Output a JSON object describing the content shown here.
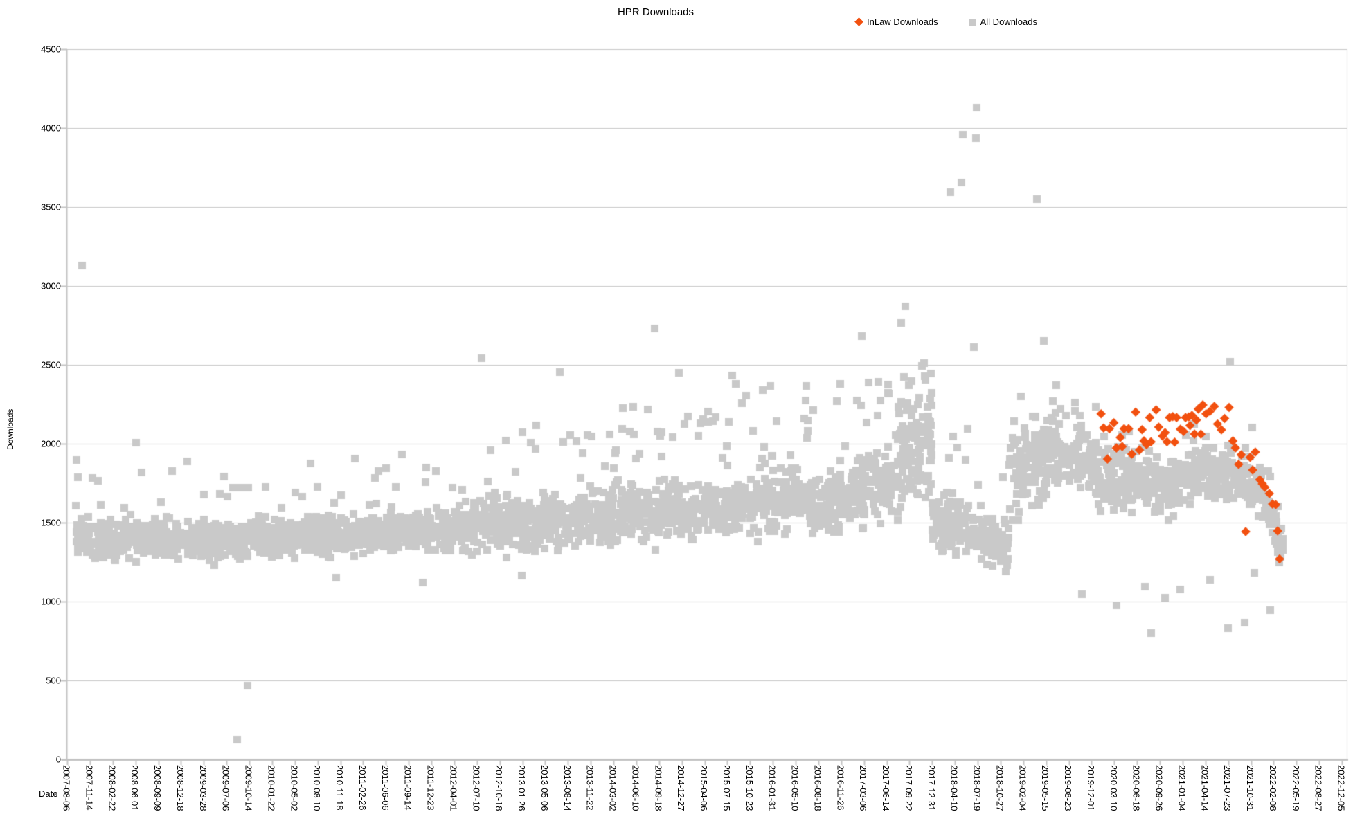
{
  "chart": {
    "title": "HPR Downloads",
    "xlabel": "Date",
    "ylabel": "Downloads"
  },
  "chart_data": {
    "type": "scatter",
    "title": "HPR Downloads",
    "xlabel": "Date",
    "ylabel": "Downloads",
    "ylim": [
      0,
      4500
    ],
    "y_ticks": [
      0,
      500,
      1000,
      1500,
      2000,
      2500,
      3000,
      3500,
      4000,
      4500
    ],
    "x_tick_interval_days": 100,
    "x_tick_labels": [
      "2007-08-06",
      "2007-11-14",
      "2008-02-22",
      "2008-06-01",
      "2008-09-09",
      "2008-12-18",
      "2009-03-28",
      "2009-07-06",
      "2009-10-14",
      "2010-01-22",
      "2010-05-02",
      "2010-08-10",
      "2010-11-18",
      "2011-02-26",
      "2011-06-06",
      "2011-09-14",
      "2011-12-23",
      "2012-04-01",
      "2012-07-10",
      "2012-10-18",
      "2013-01-26",
      "2013-05-06",
      "2013-08-14",
      "2013-11-22",
      "2014-03-02",
      "2014-06-10",
      "2014-09-18",
      "2014-12-27",
      "2015-04-06",
      "2015-07-15",
      "2015-10-23",
      "2016-01-31",
      "2016-05-10",
      "2016-08-18",
      "2016-11-26",
      "2017-03-06",
      "2017-06-14",
      "2017-09-22",
      "2017-12-31",
      "2018-04-10",
      "2018-07-19",
      "2018-10-27",
      "2019-02-04",
      "2019-05-15",
      "2019-08-23",
      "2019-12-01",
      "2020-03-10",
      "2020-06-18",
      "2020-09-26",
      "2021-01-04",
      "2021-04-14",
      "2021-07-23",
      "2021-10-31",
      "2022-02-08",
      "2022-05-19",
      "2022-08-27",
      "2022-12-05"
    ],
    "grid": "horizontal",
    "legend_position": "top-right",
    "colors": {
      "inlaw": "#f2500f",
      "all": "#c9c9c9",
      "grid": "#c8c8c8",
      "axis": "#c4c4c4",
      "text": "#000000"
    },
    "x_note": "x values are fractions of the horizontal axis; 0 = 2007-08-06 tick, 1 = 2022-12-05 tick (100-day tick spacing). Data ends ~0.95 (spring 2022).",
    "series": [
      {
        "name": "InLaw Downloads",
        "marker": "diamond",
        "color": "#f2500f",
        "points": [
          [
            0.808,
            2190
          ],
          [
            0.81,
            2100
          ],
          [
            0.813,
            1903
          ],
          [
            0.8145,
            2095
          ],
          [
            0.818,
            2133
          ],
          [
            0.82,
            1973
          ],
          [
            0.823,
            2040
          ],
          [
            0.8245,
            1982
          ],
          [
            0.826,
            2095
          ],
          [
            0.8295,
            2095
          ],
          [
            0.832,
            1934
          ],
          [
            0.835,
            2201
          ],
          [
            0.838,
            1960
          ],
          [
            0.84,
            2089
          ],
          [
            0.8415,
            2018
          ],
          [
            0.8435,
            1995
          ],
          [
            0.846,
            2166
          ],
          [
            0.847,
            2012
          ],
          [
            0.851,
            2215
          ],
          [
            0.853,
            2105
          ],
          [
            0.856,
            2048
          ],
          [
            0.858,
            2070
          ],
          [
            0.8595,
            2012
          ],
          [
            0.8615,
            2166
          ],
          [
            0.864,
            2172
          ],
          [
            0.8655,
            2010
          ],
          [
            0.867,
            2166
          ],
          [
            0.87,
            2092
          ],
          [
            0.8725,
            2078
          ],
          [
            0.874,
            2166
          ],
          [
            0.8765,
            2170
          ],
          [
            0.8775,
            2115
          ],
          [
            0.879,
            2180
          ],
          [
            0.881,
            2061
          ],
          [
            0.8825,
            2150
          ],
          [
            0.884,
            2220
          ],
          [
            0.886,
            2060
          ],
          [
            0.8875,
            2246
          ],
          [
            0.89,
            2190
          ],
          [
            0.893,
            2205
          ],
          [
            0.8965,
            2237
          ],
          [
            0.899,
            2125
          ],
          [
            0.902,
            2088
          ],
          [
            0.9045,
            2160
          ],
          [
            0.908,
            2230
          ],
          [
            0.911,
            2018
          ],
          [
            0.913,
            1974
          ],
          [
            0.9155,
            1869
          ],
          [
            0.9175,
            1930
          ],
          [
            0.921,
            1443
          ],
          [
            0.9245,
            1913
          ],
          [
            0.9265,
            1833
          ],
          [
            0.9285,
            1947
          ],
          [
            0.932,
            1772
          ],
          [
            0.934,
            1746
          ],
          [
            0.936,
            1724
          ],
          [
            0.9395,
            1684
          ],
          [
            0.942,
            1618
          ],
          [
            0.9445,
            1614
          ],
          [
            0.946,
            1447
          ],
          [
            0.9475,
            1270
          ]
        ]
      },
      {
        "name": "All Downloads",
        "marker": "square",
        "color": "#c9c9c9",
        "points_note": "~3400 episode points approximated by density segments [x0,x1,center0,center1,halfwidth,count,upper_tail_prob,upper_tail_extra] plus explicit outliers",
        "density_segments": [
          [
            0.007,
            0.1,
            1400,
            1390,
            175,
            330,
            0.05,
            430
          ],
          [
            0.1,
            0.17,
            1385,
            1390,
            165,
            250,
            0.04,
            390
          ],
          [
            0.17,
            0.3,
            1410,
            1460,
            175,
            470,
            0.05,
            430
          ],
          [
            0.3,
            0.42,
            1470,
            1530,
            235,
            430,
            0.07,
            520
          ],
          [
            0.42,
            0.52,
            1540,
            1580,
            250,
            360,
            0.09,
            650
          ],
          [
            0.52,
            0.6,
            1590,
            1650,
            270,
            290,
            0.1,
            700
          ],
          [
            0.6,
            0.65,
            1670,
            1760,
            330,
            185,
            0.1,
            570
          ],
          [
            0.65,
            0.676,
            1900,
            2010,
            430,
            130,
            0.06,
            430
          ],
          [
            0.676,
            0.706,
            1520,
            1470,
            230,
            105,
            0.08,
            620
          ],
          [
            0.706,
            0.736,
            1420,
            1340,
            210,
            105,
            0.04,
            400
          ],
          [
            0.736,
            0.778,
            1780,
            1960,
            400,
            160,
            0.04,
            360
          ],
          [
            0.778,
            0.805,
            1950,
            1850,
            240,
            95,
            0.04,
            300
          ],
          [
            0.805,
            0.87,
            1800,
            1740,
            260,
            230,
            0.03,
            300
          ],
          [
            0.87,
            0.915,
            1780,
            1840,
            220,
            160,
            0.04,
            260
          ],
          [
            0.915,
            0.935,
            1800,
            1690,
            220,
            72,
            0.03,
            280
          ],
          [
            0.935,
            0.95,
            1620,
            1340,
            180,
            55,
            0.02,
            250
          ]
        ],
        "outliers": [
          [
            0.0114,
            3130
          ],
          [
            0.054,
            2005
          ],
          [
            0.133,
            127
          ],
          [
            0.141,
            465
          ],
          [
            0.21,
            1150
          ],
          [
            0.278,
            1120
          ],
          [
            0.324,
            2540
          ],
          [
            0.355,
            1165
          ],
          [
            0.385,
            2455
          ],
          [
            0.459,
            2730
          ],
          [
            0.478,
            2450
          ],
          [
            0.52,
            2430
          ],
          [
            0.621,
            2680
          ],
          [
            0.652,
            2765
          ],
          [
            0.655,
            2870
          ],
          [
            0.69,
            3595
          ],
          [
            0.699,
            3655
          ],
          [
            0.7,
            3960
          ],
          [
            0.7085,
            2610
          ],
          [
            0.71,
            3935
          ],
          [
            0.711,
            4130
          ],
          [
            0.758,
            3550
          ],
          [
            0.763,
            2650
          ],
          [
            0.793,
            1045
          ],
          [
            0.82,
            975
          ],
          [
            0.8425,
            1095
          ],
          [
            0.847,
            800
          ],
          [
            0.858,
            1025
          ],
          [
            0.87,
            1075
          ],
          [
            0.893,
            1140
          ],
          [
            0.907,
            830
          ],
          [
            0.909,
            2520
          ],
          [
            0.92,
            865
          ],
          [
            0.928,
            1180
          ],
          [
            0.94,
            947
          ]
        ]
      }
    ]
  }
}
